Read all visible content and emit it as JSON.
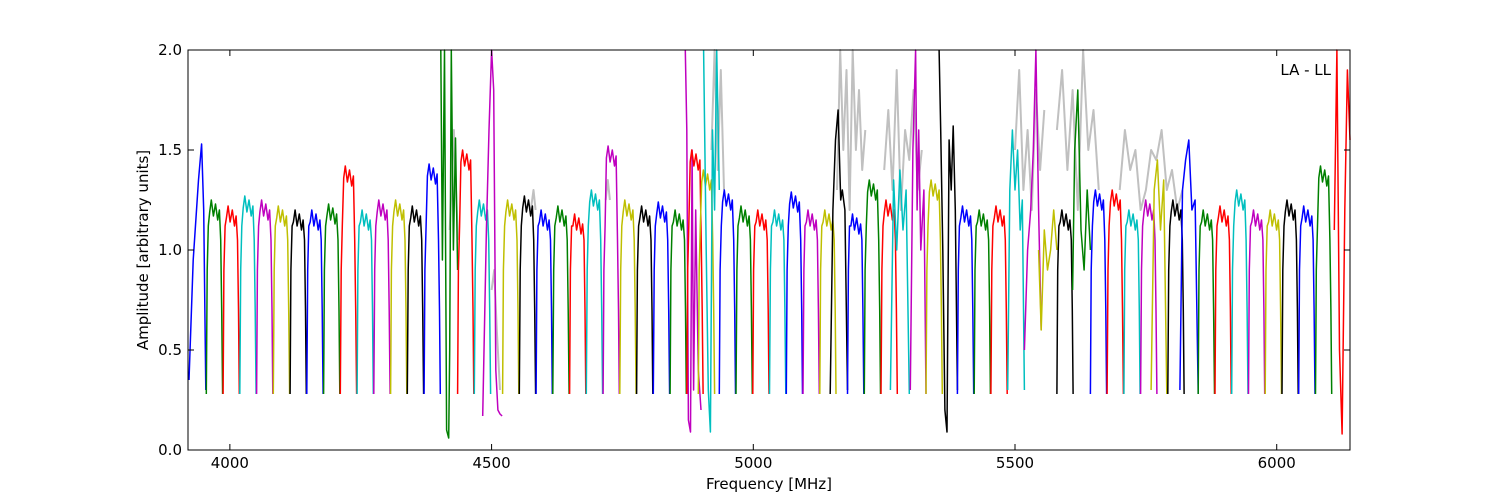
{
  "chart_data": {
    "type": "line",
    "title": "",
    "annotation": "LA - LL",
    "xlabel": "Frequency [MHz]",
    "ylabel": "Amplitude [arbitrary units]",
    "xlim": [
      3920,
      6140
    ],
    "ylim": [
      0.0,
      2.0
    ],
    "x_ticks": [
      4000,
      4500,
      5000,
      5500,
      6000
    ],
    "y_ticks": [
      0.0,
      0.5,
      1.0,
      1.5,
      2.0
    ],
    "x_tick_labels": [
      "4000",
      "4500",
      "5000",
      "5500",
      "6000"
    ],
    "y_tick_labels": [
      "0.0",
      "0.5",
      "1.0",
      "1.5",
      "2.0"
    ],
    "grid": false,
    "legend": "none",
    "band_width_mhz": 32,
    "color_cycle": [
      "#0000ff",
      "#008000",
      "#ff0000",
      "#00bfbf",
      "#bf00bf",
      "#bfbf00",
      "#000000"
    ],
    "background_series_color": "#c0c0c0",
    "series": [
      {
        "color": "#0000ff",
        "x": [
          3922,
          3930,
          3940,
          3946,
          3950,
          3954
        ],
        "y": [
          0.35,
          0.95,
          1.35,
          1.53,
          1.2,
          0.3
        ]
      },
      {
        "color": "#008000",
        "start": 3955,
        "peak": 1.25
      },
      {
        "color": "#ff0000",
        "start": 3987,
        "peak": 1.22
      },
      {
        "color": "#00bfbf",
        "start": 4019,
        "peak": 1.27
      },
      {
        "color": "#bf00bf",
        "start": 4051,
        "peak": 1.25
      },
      {
        "color": "#bfbf00",
        "start": 4083,
        "peak": 1.22
      },
      {
        "color": "#000000",
        "start": 4115,
        "peak": 1.2
      },
      {
        "color": "#0000ff",
        "start": 4147,
        "peak": 1.2
      },
      {
        "color": "#008000",
        "start": 4179,
        "peak": 1.23
      },
      {
        "color": "#ff0000",
        "start": 4211,
        "peak": 1.42
      },
      {
        "color": "#00bfbf",
        "start": 4243,
        "peak": 1.2
      },
      {
        "color": "#bf00bf",
        "start": 4275,
        "peak": 1.25
      },
      {
        "color": "#bfbf00",
        "start": 4307,
        "peak": 1.25
      },
      {
        "color": "#000000",
        "start": 4339,
        "peak": 1.22
      },
      {
        "color": "#0000ff",
        "start": 4371,
        "peak": 1.43
      },
      {
        "color": "#008000",
        "x": [
          4403,
          4406,
          4410,
          4414,
          4418,
          4420,
          4423,
          4427,
          4431,
          4435
        ],
        "y": [
          2.0,
          0.95,
          2.0,
          0.1,
          0.06,
          0.5,
          2.0,
          1.0,
          1.56,
          0.9
        ]
      },
      {
        "color": "#ff0000",
        "start": 4435,
        "peak": 1.5
      },
      {
        "color": "#00bfbf",
        "start": 4467,
        "peak": 1.25
      },
      {
        "color": "#bf00bf",
        "x": [
          4483,
          4490,
          4495,
          4500,
          4504,
          4508,
          4512,
          4516,
          4520
        ],
        "y": [
          0.17,
          1.1,
          1.6,
          2.0,
          1.8,
          0.4,
          0.2,
          0.18,
          0.17
        ]
      },
      {
        "color": "#bfbf00",
        "start": 4521,
        "peak": 1.25
      },
      {
        "color": "#000000",
        "start": 4553,
        "peak": 1.27
      },
      {
        "color": "#0000ff",
        "start": 4585,
        "peak": 1.2
      },
      {
        "color": "#008000",
        "start": 4617,
        "peak": 1.22
      },
      {
        "color": "#ff0000",
        "start": 4649,
        "peak": 1.18
      },
      {
        "color": "#00bfbf",
        "start": 4681,
        "peak": 1.3
      },
      {
        "color": "#bf00bf",
        "start": 4713,
        "peak": 1.52
      },
      {
        "color": "#bfbf00",
        "start": 4745,
        "peak": 1.25
      },
      {
        "color": "#000000",
        "start": 4777,
        "peak": 1.22
      },
      {
        "color": "#0000ff",
        "start": 4809,
        "peak": 1.24
      },
      {
        "color": "#008000",
        "start": 4841,
        "peak": 1.2
      },
      {
        "color": "#bf00bf",
        "x": [
          4870,
          4873,
          4876,
          4880,
          4883,
          4886,
          4890,
          4895,
          4900
        ],
        "y": [
          2.0,
          1.6,
          0.15,
          0.09,
          1.5,
          0.3,
          1.2,
          0.4,
          0.2
        ]
      },
      {
        "color": "#ff0000",
        "start": 4873,
        "peak": 1.5
      },
      {
        "color": "#bfbf00",
        "start": 4895,
        "peak": 1.4
      },
      {
        "color": "#00bfbf",
        "x": [
          4905,
          4910,
          4914,
          4918,
          4922,
          4926,
          4930,
          4935
        ],
        "y": [
          2.0,
          1.0,
          0.3,
          0.09,
          1.6,
          1.2,
          2.0,
          1.3
        ]
      },
      {
        "color": "#0000ff",
        "start": 4935,
        "peak": 1.3
      },
      {
        "color": "#008000",
        "start": 4967,
        "peak": 1.22
      },
      {
        "color": "#ff0000",
        "start": 4999,
        "peak": 1.2
      },
      {
        "color": "#00bfbf",
        "start": 5031,
        "peak": 1.2
      },
      {
        "color": "#0000ff",
        "start": 5063,
        "peak": 1.29
      },
      {
        "color": "#bf00bf",
        "start": 5095,
        "peak": 1.2
      },
      {
        "color": "#bfbf00",
        "start": 5127,
        "peak": 1.2
      },
      {
        "color": "#000000",
        "x": [
          5147,
          5152,
          5157,
          5162,
          5167,
          5170,
          5175,
          5180
        ],
        "y": [
          0.28,
          1.2,
          1.55,
          1.7,
          1.25,
          1.3,
          1.2,
          0.3
        ]
      },
      {
        "color": "#0000ff",
        "start": 5180,
        "peak": 1.18
      },
      {
        "color": "#008000",
        "start": 5212,
        "peak": 1.35
      },
      {
        "color": "#ff0000",
        "start": 5244,
        "peak": 1.25
      },
      {
        "color": "#00bfbf",
        "x": [
          5262,
          5268,
          5274,
          5280,
          5286,
          5292,
          5298
        ],
        "y": [
          0.3,
          1.35,
          1.0,
          1.4,
          1.1,
          1.3,
          0.28
        ]
      },
      {
        "color": "#bf00bf",
        "x": [
          5300,
          5305,
          5310,
          5313,
          5316,
          5320,
          5326,
          5330
        ],
        "y": [
          0.3,
          1.5,
          2.0,
          1.2,
          1.6,
          1.0,
          1.3,
          0.28
        ]
      },
      {
        "color": "#bfbf00",
        "start": 5330,
        "peak": 1.35
      },
      {
        "color": "#000000",
        "x": [
          5355,
          5358,
          5362,
          5366,
          5370,
          5374,
          5378,
          5382,
          5386,
          5390
        ],
        "y": [
          2.0,
          1.6,
          1.0,
          0.2,
          0.09,
          1.55,
          1.3,
          1.62,
          1.2,
          0.3
        ]
      },
      {
        "color": "#0000ff",
        "start": 5390,
        "peak": 1.22
      },
      {
        "color": "#008000",
        "start": 5422,
        "peak": 1.2
      },
      {
        "color": "#ff0000",
        "start": 5454,
        "peak": 1.22
      },
      {
        "color": "#00bfbf",
        "x": [
          5486,
          5490,
          5495,
          5500,
          5505,
          5510,
          5514,
          5518
        ],
        "y": [
          0.3,
          1.3,
          1.6,
          1.3,
          1.5,
          1.1,
          1.25,
          0.3
        ]
      },
      {
        "color": "#bf00bf",
        "x": [
          5518,
          5524,
          5530,
          5535,
          5540,
          5545,
          5550
        ],
        "y": [
          0.5,
          1.0,
          1.2,
          1.5,
          2.0,
          1.2,
          0.6
        ]
      },
      {
        "color": "#bfbf00",
        "x": [
          5545,
          5550,
          5556,
          5562,
          5568,
          5574,
          5580
        ],
        "y": [
          1.0,
          0.6,
          1.1,
          0.9,
          1.0,
          1.2,
          1.0
        ]
      },
      {
        "color": "#000000",
        "start": 5580,
        "peak": 1.2
      },
      {
        "color": "#008000",
        "x": [
          5610,
          5614,
          5620,
          5626,
          5632,
          5638,
          5644
        ],
        "y": [
          0.8,
          1.5,
          1.8,
          1.1,
          0.9,
          1.3,
          1.0
        ]
      },
      {
        "color": "#0000ff",
        "start": 5644,
        "peak": 1.3
      },
      {
        "color": "#ff0000",
        "start": 5676,
        "peak": 1.3
      },
      {
        "color": "#00bfbf",
        "start": 5708,
        "peak": 1.2
      },
      {
        "color": "#bf00bf",
        "start": 5740,
        "peak": 1.25
      },
      {
        "color": "#bfbf00",
        "x": [
          5760,
          5766,
          5772,
          5778,
          5784,
          5790
        ],
        "y": [
          0.3,
          1.3,
          1.45,
          1.1,
          1.35,
          0.28
        ]
      },
      {
        "color": "#000000",
        "start": 5792,
        "peak": 1.25
      },
      {
        "color": "#0000ff",
        "x": [
          5815,
          5820,
          5826,
          5832,
          5838,
          5844,
          5850
        ],
        "y": [
          0.3,
          1.3,
          1.45,
          1.55,
          1.2,
          1.25,
          0.28
        ]
      },
      {
        "color": "#008000",
        "start": 5850,
        "peak": 1.2
      },
      {
        "color": "#ff0000",
        "start": 5882,
        "peak": 1.22
      },
      {
        "color": "#00bfbf",
        "start": 5914,
        "peak": 1.3
      },
      {
        "color": "#bf00bf",
        "start": 5946,
        "peak": 1.2
      },
      {
        "color": "#bfbf00",
        "start": 5978,
        "peak": 1.2
      },
      {
        "color": "#000000",
        "start": 6010,
        "peak": 1.25
      },
      {
        "color": "#0000ff",
        "start": 6042,
        "peak": 1.22
      },
      {
        "color": "#008000",
        "start": 6074,
        "peak": 1.42
      },
      {
        "color": "#ff0000",
        "x": [
          6110,
          6115,
          6120,
          6125,
          6130,
          6135,
          6140
        ],
        "y": [
          1.1,
          2.0,
          0.5,
          0.08,
          1.2,
          1.9,
          1.55
        ]
      }
    ],
    "background_series": [
      {
        "x": [
          4420,
          4428,
          4432,
          4436
        ],
        "y": [
          1.1,
          1.6,
          1.3,
          1.05
        ]
      },
      {
        "x": [
          4500,
          4505,
          4510,
          4516
        ],
        "y": [
          0.8,
          0.9,
          0.6,
          0.3
        ]
      },
      {
        "x": [
          4575,
          4580,
          4584
        ],
        "y": [
          1.2,
          1.3,
          1.2
        ]
      },
      {
        "x": [
          4718,
          4722,
          4726
        ],
        "y": [
          1.25,
          1.35,
          1.25
        ]
      },
      {
        "x": [
          4920,
          4926,
          4932,
          4938,
          4944
        ],
        "y": [
          1.5,
          2.0,
          1.4,
          1.9,
          1.3
        ]
      },
      {
        "x": [
          5160,
          5166,
          5172,
          5178,
          5184,
          5190,
          5196,
          5202,
          5208,
          5214
        ],
        "y": [
          1.3,
          2.0,
          1.5,
          1.9,
          1.2,
          2.0,
          1.5,
          1.8,
          1.4,
          1.6
        ]
      },
      {
        "x": [
          5250,
          5258,
          5266,
          5274,
          5282,
          5290,
          5298,
          5306,
          5314,
          5322
        ],
        "y": [
          1.4,
          1.7,
          1.3,
          1.9,
          1.2,
          1.6,
          1.45,
          1.8,
          1.3,
          1.5
        ]
      },
      {
        "x": [
          5500,
          5508,
          5516,
          5524,
          5532,
          5540,
          5548,
          5556
        ],
        "y": [
          1.5,
          1.9,
          1.3,
          1.6,
          1.2,
          1.8,
          1.4,
          1.7
        ]
      },
      {
        "x": [
          5580,
          5590,
          5600,
          5610,
          5620,
          5630,
          5640,
          5650,
          5660
        ],
        "y": [
          1.6,
          1.9,
          1.4,
          1.8,
          1.2,
          2.0,
          1.5,
          1.7,
          1.3
        ]
      },
      {
        "x": [
          5700,
          5710,
          5720,
          5730,
          5740,
          5750,
          5760,
          5770,
          5780,
          5790,
          5800,
          5810,
          5820
        ],
        "y": [
          1.3,
          1.6,
          1.4,
          1.5,
          1.2,
          1.3,
          1.5,
          1.45,
          1.6,
          1.3,
          1.4,
          1.2,
          1.3
        ]
      }
    ]
  }
}
